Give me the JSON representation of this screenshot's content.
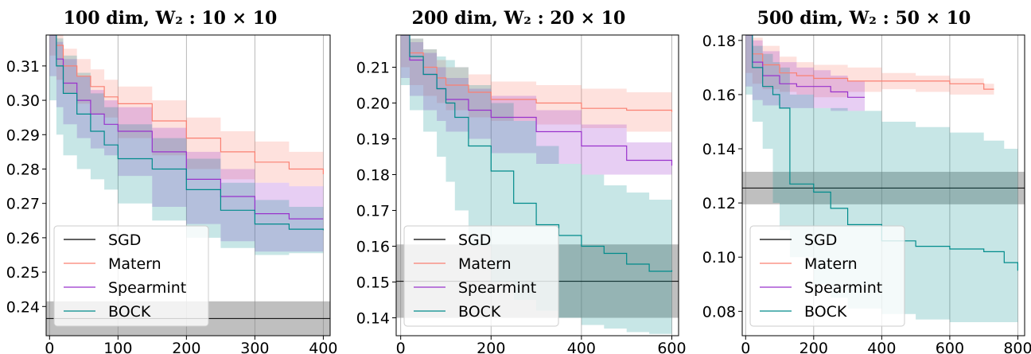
{
  "chart_data": [
    {
      "type": "line",
      "title": "100 dim, W₂ : 10 × 10",
      "xlim": [
        -5,
        410
      ],
      "ylim": [
        0.2315,
        0.319
      ],
      "xticks": [
        0,
        100,
        200,
        300,
        400
      ],
      "yticks": [
        0.24,
        0.25,
        0.26,
        0.27,
        0.28,
        0.29,
        0.3,
        0.31
      ],
      "ytick_labels": [
        "0.24",
        "0.25",
        "0.26",
        "0.27",
        "0.28",
        "0.29",
        "0.30",
        "0.31"
      ],
      "grid": "x-only",
      "legend": {
        "location": "lower-left",
        "entries": [
          "SGD",
          "Matern",
          "Spearmint",
          "BOCK"
        ]
      },
      "sgd": {
        "value": 0.2365,
        "band": [
          0.2315,
          0.2415
        ]
      },
      "series": [
        {
          "name": "Matern",
          "color": "#fa8072",
          "x": [
            0,
            10,
            20,
            40,
            60,
            80,
            100,
            150,
            200,
            250,
            300,
            350,
            400
          ],
          "y": [
            0.319,
            0.316,
            0.31,
            0.307,
            0.304,
            0.301,
            0.299,
            0.294,
            0.289,
            0.285,
            0.282,
            0.28,
            0.2785
          ],
          "lower": [
            0.319,
            0.313,
            0.306,
            0.302,
            0.299,
            0.296,
            0.295,
            0.289,
            0.284,
            0.28,
            0.277,
            0.276,
            0.275
          ],
          "upper": [
            0.319,
            0.319,
            0.315,
            0.312,
            0.309,
            0.306,
            0.304,
            0.3,
            0.295,
            0.291,
            0.288,
            0.285,
            0.282
          ]
        },
        {
          "name": "Spearmint",
          "color": "#9932cc",
          "x": [
            0,
            10,
            20,
            40,
            60,
            80,
            100,
            150,
            200,
            250,
            300,
            350,
            400
          ],
          "y": [
            0.319,
            0.312,
            0.305,
            0.3,
            0.296,
            0.293,
            0.291,
            0.285,
            0.277,
            0.272,
            0.267,
            0.2655,
            0.2655
          ],
          "lower": [
            0.319,
            0.307,
            0.298,
            0.293,
            0.289,
            0.286,
            0.284,
            0.278,
            0.269,
            0.264,
            0.259,
            0.256,
            0.256
          ],
          "upper": [
            0.319,
            0.317,
            0.312,
            0.307,
            0.303,
            0.3,
            0.298,
            0.292,
            0.285,
            0.28,
            0.276,
            0.275,
            0.275
          ]
        },
        {
          "name": "BOCK",
          "color": "#008b8b",
          "x": [
            0,
            10,
            20,
            40,
            60,
            80,
            100,
            150,
            200,
            250,
            300,
            350,
            400
          ],
          "y": [
            0.319,
            0.31,
            0.302,
            0.296,
            0.291,
            0.287,
            0.283,
            0.28,
            0.274,
            0.268,
            0.264,
            0.2625,
            0.2622
          ],
          "lower": [
            0.319,
            0.3,
            0.29,
            0.284,
            0.28,
            0.277,
            0.274,
            0.27,
            0.265,
            0.26,
            0.257,
            0.255,
            0.2555
          ],
          "upper": [
            0.319,
            0.318,
            0.313,
            0.308,
            0.302,
            0.298,
            0.293,
            0.289,
            0.283,
            0.276,
            0.271,
            0.269,
            0.269
          ]
        }
      ]
    },
    {
      "type": "line",
      "title": "200 dim, W₂ : 20 × 10",
      "xlim": [
        -10,
        615
      ],
      "ylim": [
        0.135,
        0.219
      ],
      "xticks": [
        0,
        200,
        400,
        600
      ],
      "yticks": [
        0.14,
        0.15,
        0.16,
        0.17,
        0.18,
        0.19,
        0.2,
        0.21
      ],
      "ytick_labels": [
        "0.14",
        "0.15",
        "0.16",
        "0.17",
        "0.18",
        "0.19",
        "0.20",
        "0.21"
      ],
      "grid": "x-only",
      "legend": {
        "location": "lower-left",
        "entries": [
          "SGD",
          "Matern",
          "Spearmint",
          "BOCK"
        ]
      },
      "sgd": {
        "value": 0.1502,
        "band": [
          0.14,
          0.1605
        ]
      },
      "series": [
        {
          "name": "Matern",
          "color": "#fa8072",
          "x": [
            0,
            20,
            50,
            80,
            100,
            150,
            200,
            300,
            400,
            500,
            600
          ],
          "y": [
            0.219,
            0.214,
            0.21,
            0.207,
            0.205,
            0.203,
            0.201,
            0.2,
            0.1985,
            0.198,
            0.1975
          ],
          "lower": [
            0.219,
            0.21,
            0.205,
            0.202,
            0.2,
            0.198,
            0.196,
            0.195,
            0.194,
            0.193,
            0.192
          ],
          "upper": [
            0.219,
            0.218,
            0.215,
            0.212,
            0.21,
            0.208,
            0.206,
            0.205,
            0.204,
            0.203,
            0.2025
          ]
        },
        {
          "name": "Spearmint",
          "color": "#9932cc",
          "x": [
            0,
            20,
            50,
            80,
            100,
            150,
            200,
            300,
            400,
            500,
            600
          ],
          "y": [
            0.219,
            0.212,
            0.208,
            0.204,
            0.201,
            0.198,
            0.196,
            0.192,
            0.188,
            0.184,
            0.1825
          ],
          "lower": [
            0.219,
            0.207,
            0.202,
            0.198,
            0.195,
            0.192,
            0.19,
            0.186,
            0.183,
            0.18,
            0.18
          ],
          "upper": [
            0.219,
            0.217,
            0.214,
            0.21,
            0.207,
            0.204,
            0.202,
            0.198,
            0.194,
            0.189,
            0.186
          ]
        },
        {
          "name": "BOCK",
          "color": "#008b8b",
          "x": [
            0,
            20,
            50,
            80,
            100,
            120,
            150,
            200,
            250,
            300,
            350,
            400,
            450,
            500,
            550,
            600
          ],
          "y": [
            0.219,
            0.213,
            0.208,
            0.204,
            0.2,
            0.196,
            0.188,
            0.181,
            0.172,
            0.166,
            0.163,
            0.16,
            0.158,
            0.155,
            0.153,
            0.1533
          ],
          "lower": [
            0.219,
            0.205,
            0.198,
            0.192,
            0.185,
            0.178,
            0.17,
            0.16,
            0.15,
            0.145,
            0.142,
            0.14,
            0.138,
            0.137,
            0.136,
            0.1355
          ],
          "upper": [
            0.219,
            0.218,
            0.215,
            0.213,
            0.212,
            0.21,
            0.205,
            0.2,
            0.195,
            0.188,
            0.183,
            0.18,
            0.177,
            0.175,
            0.173,
            0.171
          ]
        }
      ]
    },
    {
      "type": "line",
      "title": "500 dim, W₂ : 50 × 10",
      "xlim": [
        -10,
        820
      ],
      "ylim": [
        0.071,
        0.182
      ],
      "xticks": [
        0,
        200,
        400,
        600,
        800
      ],
      "yticks": [
        0.08,
        0.1,
        0.12,
        0.14,
        0.16,
        0.18
      ],
      "ytick_labels": [
        "0.08",
        "0.10",
        "0.12",
        "0.14",
        "0.16",
        "0.18"
      ],
      "grid": "x-only",
      "legend": {
        "location": "lower-left",
        "entries": [
          "SGD",
          "Matern",
          "Spearmint",
          "BOCK"
        ]
      },
      "sgd": {
        "value": 0.1255,
        "band": [
          0.1195,
          0.1315
        ]
      },
      "series": [
        {
          "name": "Matern",
          "color": "#fa8072",
          "x": [
            0,
            20,
            50,
            100,
            150,
            200,
            300,
            400,
            500,
            600,
            700,
            730
          ],
          "y": [
            0.182,
            0.175,
            0.171,
            0.168,
            0.167,
            0.166,
            0.165,
            0.165,
            0.165,
            0.164,
            0.162,
            0.162
          ],
          "lower": [
            0.182,
            0.168,
            0.164,
            0.162,
            0.161,
            0.16,
            0.159,
            0.161,
            0.162,
            0.161,
            0.16,
            0.16
          ],
          "upper": [
            0.182,
            0.181,
            0.178,
            0.174,
            0.172,
            0.171,
            0.17,
            0.168,
            0.167,
            0.166,
            0.164,
            0.164
          ]
        },
        {
          "name": "Spearmint",
          "color": "#9932cc",
          "x": [
            0,
            20,
            50,
            100,
            150,
            200,
            250,
            300,
            350
          ],
          "y": [
            0.182,
            0.172,
            0.167,
            0.164,
            0.163,
            0.163,
            0.161,
            0.159,
            0.159
          ],
          "lower": [
            0.182,
            0.163,
            0.158,
            0.156,
            0.155,
            0.155,
            0.155,
            0.154,
            0.154
          ],
          "upper": [
            0.182,
            0.18,
            0.176,
            0.172,
            0.17,
            0.169,
            0.167,
            0.165,
            0.165
          ]
        },
        {
          "name": "BOCK",
          "color": "#008b8b",
          "x": [
            0,
            20,
            50,
            80,
            100,
            130,
            200,
            250,
            300,
            400,
            500,
            600,
            700,
            760,
            800
          ],
          "y": [
            0.182,
            0.17,
            0.163,
            0.16,
            0.155,
            0.127,
            0.124,
            0.118,
            0.112,
            0.106,
            0.104,
            0.103,
            0.102,
            0.098,
            0.095
          ],
          "lower": [
            0.182,
            0.16,
            0.15,
            0.14,
            0.12,
            0.11,
            0.1,
            0.09,
            0.085,
            0.081,
            0.079,
            0.077,
            0.076,
            0.076,
            0.076
          ],
          "upper": [
            0.182,
            0.178,
            0.175,
            0.172,
            0.17,
            0.16,
            0.155,
            0.155,
            0.154,
            0.15,
            0.148,
            0.146,
            0.143,
            0.14,
            0.138
          ]
        }
      ]
    }
  ]
}
